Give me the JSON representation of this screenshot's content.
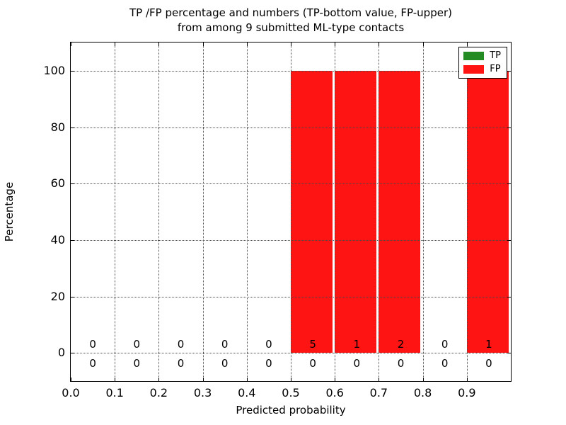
{
  "figure": {
    "title_line1": "TP /FP percentage and numbers (TP-bottom value, FP-upper)",
    "title_line2": "from among 9 submitted ML-type contacts",
    "xlabel": "Predicted probability",
    "ylabel": "Percentage"
  },
  "legend": {
    "position": "upper right",
    "items": [
      {
        "label": "TP",
        "color": "#228b22"
      },
      {
        "label": "FP",
        "color": "#ff1414"
      }
    ]
  },
  "chart_data": {
    "type": "bar",
    "stacked": true,
    "title": "TP /FP percentage and numbers (TP-bottom value, FP-upper) from among 9 submitted ML-type contacts",
    "xlabel": "Predicted probability",
    "ylabel": "Percentage",
    "total_contacts": 9,
    "bin_starts": [
      0.0,
      0.1,
      0.2,
      0.3,
      0.4,
      0.5,
      0.6,
      0.7,
      0.8,
      0.9
    ],
    "bin_width": 0.1,
    "bar_width_fraction": 0.95,
    "series": [
      {
        "name": "TP",
        "color": "#228b22",
        "percent": [
          0,
          0,
          0,
          0,
          0,
          0,
          0,
          0,
          0,
          0
        ],
        "counts": [
          0,
          0,
          0,
          0,
          0,
          0,
          0,
          0,
          0,
          0
        ]
      },
      {
        "name": "FP",
        "color": "#ff1414",
        "percent": [
          0,
          0,
          0,
          0,
          0,
          100,
          100,
          100,
          0,
          100
        ],
        "counts": [
          0,
          0,
          0,
          0,
          0,
          5,
          1,
          2,
          0,
          1
        ]
      }
    ],
    "xtick_labels": [
      "0.0",
      "0.1",
      "0.2",
      "0.3",
      "0.4",
      "0.5",
      "0.6",
      "0.7",
      "0.8",
      "0.9"
    ],
    "ytick_values": [
      0,
      20,
      40,
      60,
      80,
      100
    ],
    "xlim": [
      0.0,
      1.0
    ],
    "ylim": [
      -10,
      110
    ],
    "grid": true,
    "grid_style": "dotted",
    "legend_position": "upper right"
  }
}
